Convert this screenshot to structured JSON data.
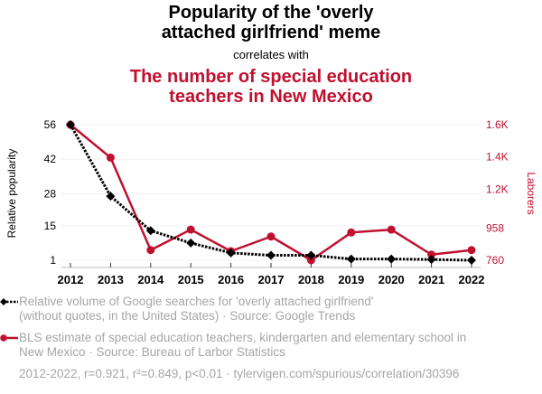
{
  "header": {
    "title": "Popularity of the 'overly attached girlfriend' meme",
    "title_line1": "Popularity of the 'overly",
    "title_line2": "attached girlfriend' meme",
    "connector": "correlates with",
    "subtitle_line1": "The number of special education",
    "subtitle_line2": "teachers in New Mexico"
  },
  "colors": {
    "series1": "#000000",
    "series2": "#c0102e",
    "legend_text": "#a6a6a6",
    "grid": "#f0f0f0"
  },
  "chart_data": {
    "type": "line",
    "title": "Popularity of the 'overly attached girlfriend' meme correlates with The number of special education teachers in New Mexico",
    "x": [
      2012,
      2013,
      2014,
      2015,
      2016,
      2017,
      2018,
      2019,
      2020,
      2021,
      2022
    ],
    "xlabel": "",
    "x_tick_labels": [
      "2012",
      "2013",
      "2014",
      "2015",
      "2016",
      "2017",
      "2018",
      "2019",
      "2020",
      "2021",
      "2022"
    ],
    "grid": true,
    "legend_placement": "bottom",
    "y_left": {
      "label": "Relative popularity",
      "range": [
        1,
        56
      ],
      "ticks": [
        1,
        15,
        28,
        42,
        56
      ],
      "tick_labels": [
        "1",
        "15",
        "28",
        "42",
        "56"
      ]
    },
    "y_right": {
      "label": "Laborers",
      "range": [
        760,
        1600
      ],
      "ticks": [
        760,
        958,
        1200,
        1400,
        1600
      ],
      "tick_labels": [
        "760",
        "958",
        "1.2K",
        "1.4K",
        "1.6K"
      ]
    },
    "series": [
      {
        "name": "Relative volume of Google searches for 'overly attached girlfriend' (without quotes, in the United States) · Source: Google Trends",
        "axis": "left",
        "style": "dotted",
        "marker": "diamond",
        "values": [
          56,
          27,
          13,
          8,
          4,
          3,
          3,
          1.5,
          1.5,
          1.3,
          1
        ]
      },
      {
        "name": "BLS estimate of special education teachers, kindergarten and elementary school in New Mexico · Source: Bureau of Larbor Statistics",
        "axis": "right",
        "style": "solid",
        "marker": "circle",
        "values": [
          1600,
          1396,
          823,
          950,
          816,
          907,
          760,
          932,
          950,
          795,
          823
        ]
      }
    ]
  },
  "legend": {
    "series1_line1": "Relative volume of Google searches for 'overly attached girlfriend'",
    "series1_line2": "(without quotes, in the United States) · Source: Google Trends",
    "series2_line1": "BLS estimate of special education teachers, kindergarten and elementary school in",
    "series2_line2": "New Mexico · Source: Bureau of Larbor Statistics",
    "footer": "2012-2022, r=0.921, r²=0.849, p<0.01 · tylervigen.com/spurious/correlation/30396"
  }
}
